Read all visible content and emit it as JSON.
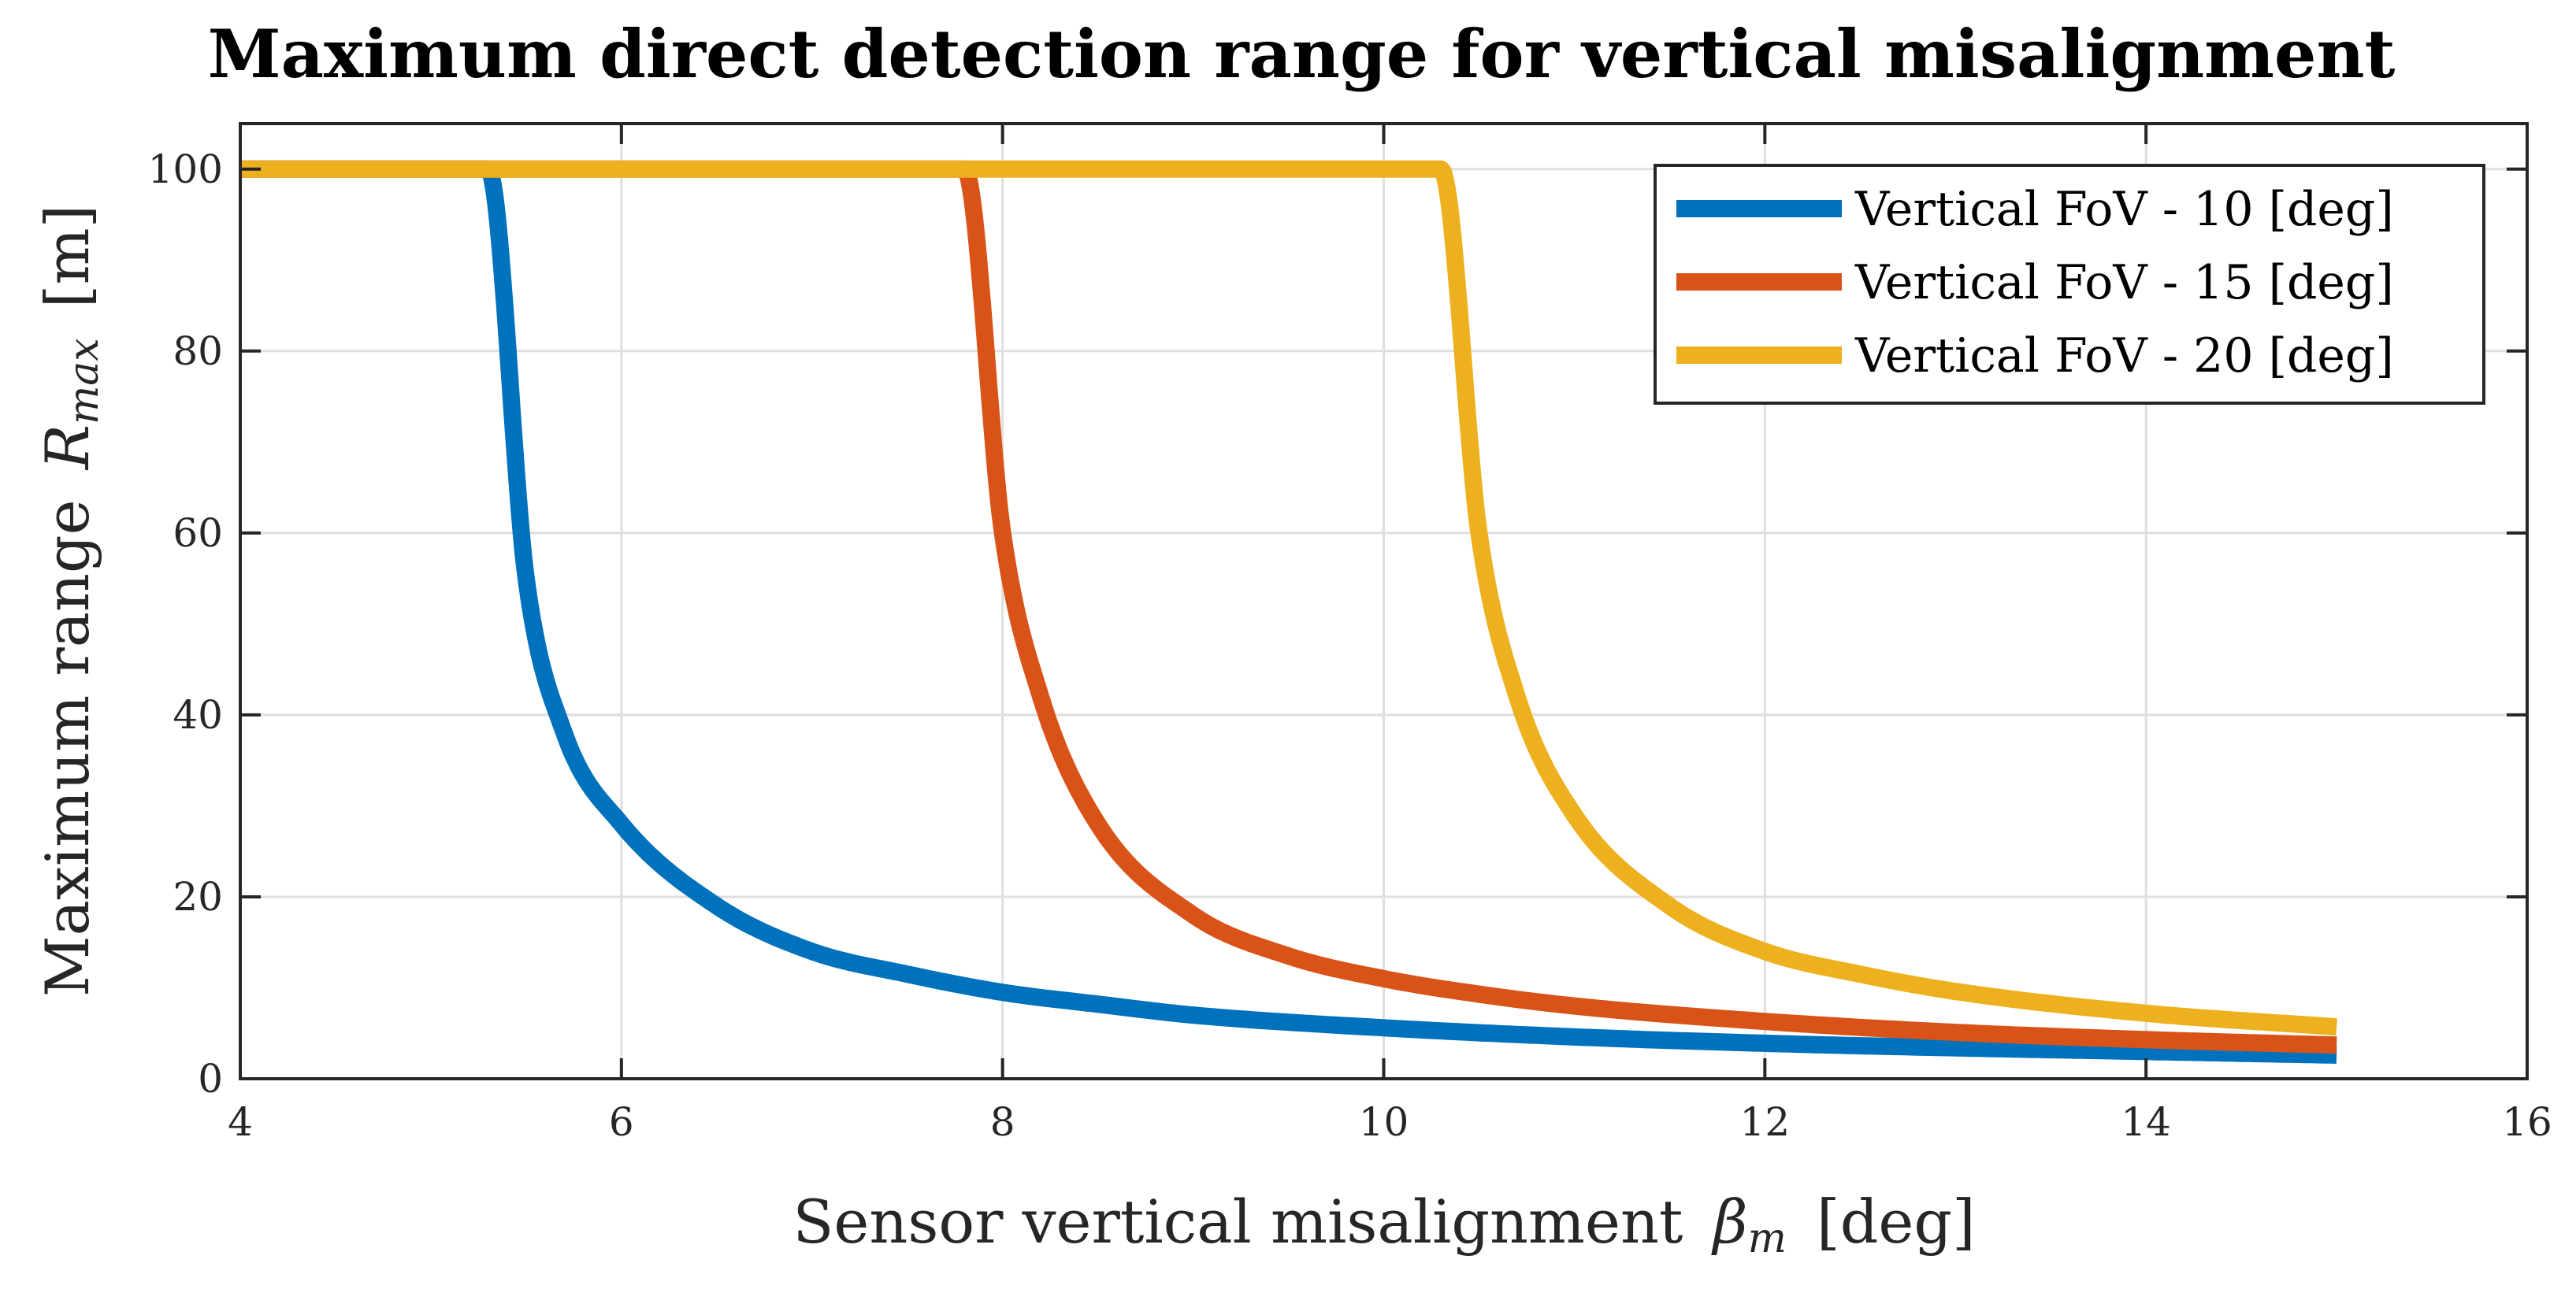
{
  "chart_data": {
    "type": "line",
    "title": "Maximum direct detection range for vertical misalignment",
    "xlabel": "Sensor vertical misalignment",
    "xlabel_symbol": "βm",
    "xlabel_unit": "[deg]",
    "ylabel": "Maximum range",
    "ylabel_symbol": "Rmax",
    "ylabel_unit": "[m]",
    "xlim": [
      4,
      16
    ],
    "ylim": [
      0,
      105
    ],
    "xticks": [
      4,
      6,
      8,
      10,
      12,
      14,
      16
    ],
    "yticks": [
      0,
      20,
      40,
      60,
      80,
      100
    ],
    "grid": true,
    "legend_position": "top-right",
    "series": [
      {
        "name": "Vertical FoV - 10 [deg]",
        "color": "#0072bd",
        "x": [
          4.0,
          5.3,
          5.5,
          5.7,
          6.0,
          6.5,
          7.0,
          7.5,
          8.0,
          8.5,
          9.0,
          10.0,
          11.0,
          12.0,
          13.0,
          14.0,
          15.0
        ],
        "y": [
          100,
          100,
          55,
          38,
          28,
          19,
          14,
          11.5,
          9.5,
          8.2,
          7.0,
          5.6,
          4.6,
          3.9,
          3.4,
          3.0,
          2.6
        ]
      },
      {
        "name": "Vertical FoV - 15 [deg]",
        "color": "#d95319",
        "x": [
          4.0,
          7.8,
          8.0,
          8.2,
          8.5,
          9.0,
          9.5,
          10.0,
          10.5,
          11.0,
          12.0,
          13.0,
          14.0,
          15.0
        ],
        "y": [
          100,
          100,
          60,
          42,
          28,
          18,
          13.5,
          11,
          9.3,
          8.0,
          6.3,
          5.1,
          4.3,
          3.7
        ]
      },
      {
        "name": "Vertical FoV - 20 [deg]",
        "color": "#edb120",
        "x": [
          4.0,
          10.3,
          10.5,
          10.7,
          11.0,
          11.5,
          12.0,
          12.5,
          13.0,
          14.0,
          15.0
        ],
        "y": [
          100,
          100,
          60,
          42,
          29,
          19,
          14,
          11.5,
          9.6,
          7.2,
          5.7
        ]
      }
    ]
  }
}
